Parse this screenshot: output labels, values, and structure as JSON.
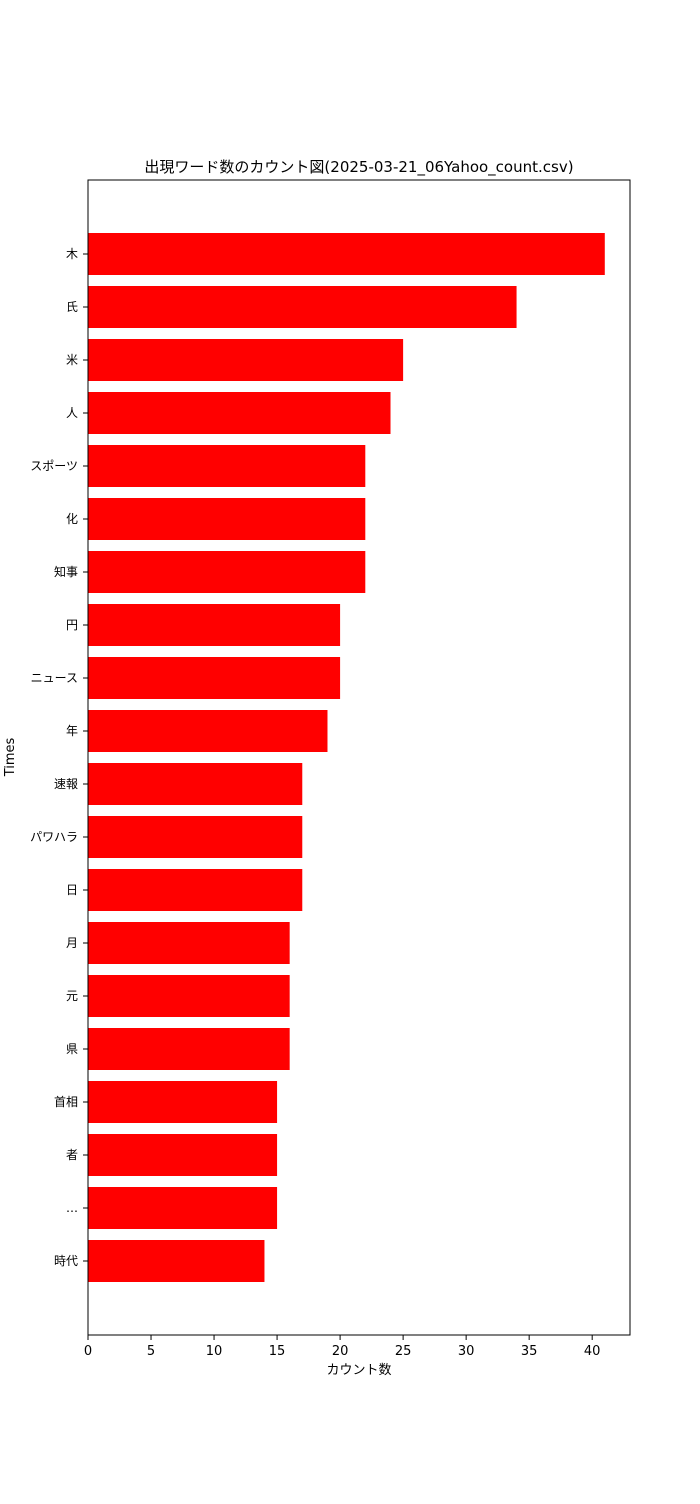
{
  "chart_data": {
    "type": "bar",
    "orientation": "horizontal",
    "title": "出現ワード数のカウント図(2025-03-21_06Yahoo_count.csv)",
    "xlabel": "カウント数",
    "ylabel": "Times",
    "xlim": [
      0,
      43
    ],
    "xticks": [
      0,
      5,
      10,
      15,
      20,
      25,
      30,
      35,
      40
    ],
    "grid": false,
    "bar_color": "#ff0000",
    "categories": [
      "木",
      "氏",
      "米",
      "人",
      "スポーツ",
      "化",
      "知事",
      "円",
      "ニュース",
      "年",
      "速報",
      "パワハラ",
      "日",
      "月",
      "元",
      "県",
      "首相",
      "者",
      "…",
      "時代"
    ],
    "values": [
      41,
      34,
      25,
      24,
      22,
      22,
      22,
      20,
      20,
      19,
      17,
      17,
      17,
      16,
      16,
      16,
      15,
      15,
      15,
      14
    ]
  }
}
